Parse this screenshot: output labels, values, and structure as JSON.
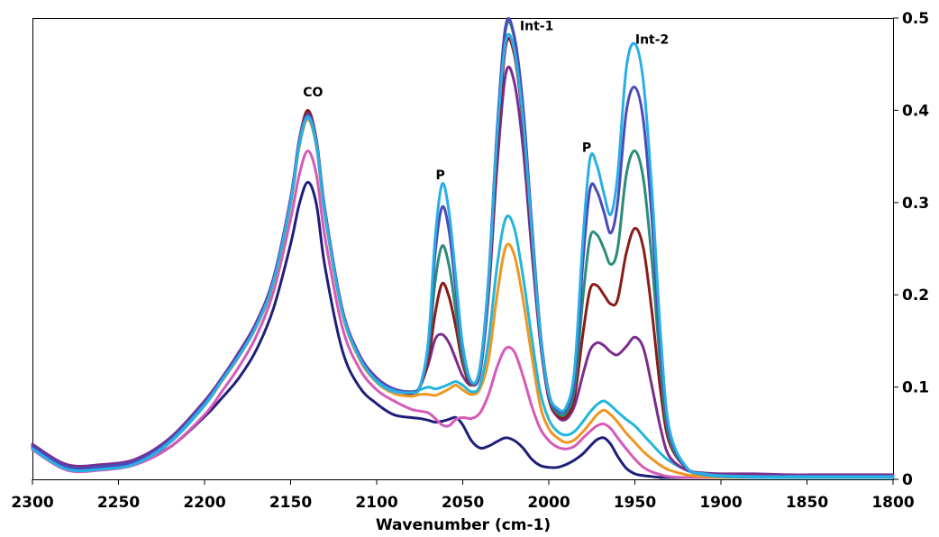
{
  "chart_data": {
    "type": "line",
    "title": "",
    "xlabel": "Wavenumber (cm-1)",
    "ylabel": "",
    "xlim": [
      2300,
      1800
    ],
    "x_reversed": true,
    "ylim": [
      0,
      0.5
    ],
    "y_axis_position": "right",
    "grid": false,
    "legend": "none",
    "x_ticks": [
      "2300",
      "2250",
      "2200",
      "2150",
      "2100",
      "2050",
      "2000",
      "1950",
      "1900",
      "1850",
      "1800"
    ],
    "x_tick_values": [
      2300,
      2250,
      2200,
      2150,
      2100,
      2050,
      2000,
      1950,
      1900,
      1850,
      1800
    ],
    "y_ticks": [
      "0",
      "0.1",
      "0.2",
      "0.3",
      "0.4",
      "0.5"
    ],
    "y_tick_values": [
      0,
      0.1,
      0.2,
      0.3,
      0.4,
      0.5
    ],
    "peak_labels": [
      {
        "text": "CO",
        "x": 2137,
        "y": 0.415
      },
      {
        "text": "P",
        "x": 2063,
        "y": 0.325
      },
      {
        "text": "Int-1",
        "x": 2007,
        "y": 0.487
      },
      {
        "text": "P",
        "x": 1978,
        "y": 0.355
      },
      {
        "text": "Int-2",
        "x": 1940,
        "y": 0.472
      }
    ],
    "x": [
      2300,
      2280,
      2260,
      2240,
      2220,
      2200,
      2190,
      2180,
      2170,
      2160,
      2150,
      2145,
      2140,
      2135,
      2130,
      2120,
      2110,
      2100,
      2090,
      2080,
      2075,
      2070,
      2066,
      2062,
      2058,
      2054,
      2050,
      2045,
      2040,
      2035,
      2030,
      2025,
      2020,
      2015,
      2010,
      2005,
      2000,
      1995,
      1990,
      1985,
      1980,
      1976,
      1972,
      1968,
      1964,
      1960,
      1955,
      1950,
      1945,
      1940,
      1935,
      1930,
      1920,
      1910,
      1900,
      1880,
      1860,
      1840,
      1820,
      1800
    ],
    "series": [
      {
        "color": "#1f1f7a",
        "values": [
          0.035,
          0.012,
          0.012,
          0.018,
          0.035,
          0.068,
          0.088,
          0.11,
          0.14,
          0.185,
          0.255,
          0.298,
          0.322,
          0.298,
          0.23,
          0.14,
          0.1,
          0.082,
          0.07,
          0.067,
          0.066,
          0.064,
          0.062,
          0.063,
          0.065,
          0.067,
          0.059,
          0.042,
          0.034,
          0.036,
          0.041,
          0.045,
          0.042,
          0.034,
          0.022,
          0.015,
          0.013,
          0.013,
          0.016,
          0.021,
          0.028,
          0.036,
          0.043,
          0.045,
          0.038,
          0.025,
          0.012,
          0.006,
          0.004,
          0.003,
          0.002,
          0.002,
          0.002,
          0.002,
          0.002,
          0.002,
          0.002,
          0.002,
          0.002,
          0.002
        ]
      },
      {
        "color": "#d65ab8",
        "values": [
          0.032,
          0.01,
          0.01,
          0.016,
          0.035,
          0.07,
          0.095,
          0.122,
          0.155,
          0.203,
          0.282,
          0.33,
          0.356,
          0.33,
          0.262,
          0.165,
          0.12,
          0.097,
          0.085,
          0.076,
          0.074,
          0.072,
          0.066,
          0.059,
          0.058,
          0.065,
          0.067,
          0.066,
          0.072,
          0.092,
          0.122,
          0.142,
          0.138,
          0.112,
          0.08,
          0.055,
          0.042,
          0.035,
          0.033,
          0.036,
          0.045,
          0.052,
          0.058,
          0.06,
          0.055,
          0.045,
          0.033,
          0.022,
          0.013,
          0.008,
          0.005,
          0.003,
          0.002,
          0.002,
          0.002,
          0.002,
          0.002,
          0.002,
          0.002,
          0.002
        ]
      },
      {
        "color": "#f09620",
        "values": [
          0.033,
          0.011,
          0.011,
          0.017,
          0.04,
          0.08,
          0.106,
          0.133,
          0.165,
          0.212,
          0.298,
          0.36,
          0.39,
          0.36,
          0.285,
          0.18,
          0.13,
          0.105,
          0.093,
          0.09,
          0.092,
          0.092,
          0.091,
          0.094,
          0.098,
          0.102,
          0.097,
          0.092,
          0.098,
          0.13,
          0.2,
          0.252,
          0.243,
          0.195,
          0.135,
          0.08,
          0.055,
          0.045,
          0.04,
          0.043,
          0.052,
          0.061,
          0.07,
          0.075,
          0.07,
          0.062,
          0.05,
          0.04,
          0.03,
          0.022,
          0.015,
          0.01,
          0.005,
          0.003,
          0.002,
          0.002,
          0.002,
          0.002,
          0.002,
          0.002
        ]
      },
      {
        "color": "#22b6dc",
        "values": [
          0.033,
          0.011,
          0.011,
          0.017,
          0.04,
          0.08,
          0.108,
          0.134,
          0.166,
          0.214,
          0.3,
          0.362,
          0.392,
          0.362,
          0.287,
          0.182,
          0.132,
          0.106,
          0.095,
          0.095,
          0.097,
          0.1,
          0.098,
          0.1,
          0.103,
          0.106,
          0.102,
          0.095,
          0.102,
          0.15,
          0.232,
          0.283,
          0.272,
          0.22,
          0.155,
          0.095,
          0.065,
          0.052,
          0.048,
          0.052,
          0.063,
          0.073,
          0.081,
          0.085,
          0.08,
          0.073,
          0.065,
          0.058,
          0.048,
          0.038,
          0.028,
          0.02,
          0.01,
          0.005,
          0.003,
          0.002,
          0.002,
          0.002,
          0.002,
          0.002
        ]
      },
      {
        "color": "#7b2d8e",
        "values": [
          0.038,
          0.016,
          0.016,
          0.022,
          0.045,
          0.085,
          0.11,
          0.138,
          0.17,
          0.218,
          0.305,
          0.368,
          0.397,
          0.368,
          0.292,
          0.185,
          0.135,
          0.11,
          0.098,
          0.093,
          0.1,
          0.125,
          0.152,
          0.157,
          0.148,
          0.13,
          0.112,
          0.102,
          0.115,
          0.2,
          0.34,
          0.44,
          0.43,
          0.36,
          0.25,
          0.15,
          0.087,
          0.068,
          0.065,
          0.08,
          0.115,
          0.14,
          0.148,
          0.145,
          0.138,
          0.135,
          0.144,
          0.154,
          0.142,
          0.1,
          0.055,
          0.025,
          0.01,
          0.007,
          0.006,
          0.006,
          0.005,
          0.005,
          0.005,
          0.005
        ]
      },
      {
        "color": "#8b1a1a",
        "values": [
          0.034,
          0.012,
          0.012,
          0.018,
          0.042,
          0.083,
          0.108,
          0.136,
          0.168,
          0.216,
          0.303,
          0.367,
          0.4,
          0.367,
          0.29,
          0.183,
          0.133,
          0.108,
          0.097,
          0.093,
          0.1,
          0.13,
          0.18,
          0.212,
          0.198,
          0.165,
          0.125,
          0.103,
          0.12,
          0.21,
          0.36,
          0.47,
          0.46,
          0.385,
          0.265,
          0.155,
          0.09,
          0.07,
          0.068,
          0.09,
          0.16,
          0.206,
          0.21,
          0.2,
          0.19,
          0.195,
          0.245,
          0.272,
          0.25,
          0.18,
          0.095,
          0.04,
          0.012,
          0.006,
          0.004,
          0.003,
          0.003,
          0.003,
          0.003,
          0.003
        ]
      },
      {
        "color": "#2a8c7a",
        "values": [
          0.034,
          0.012,
          0.012,
          0.018,
          0.042,
          0.082,
          0.108,
          0.135,
          0.167,
          0.215,
          0.302,
          0.365,
          0.395,
          0.365,
          0.289,
          0.182,
          0.133,
          0.108,
          0.097,
          0.094,
          0.1,
          0.14,
          0.215,
          0.253,
          0.232,
          0.182,
          0.132,
          0.104,
          0.12,
          0.215,
          0.375,
          0.488,
          0.478,
          0.4,
          0.278,
          0.16,
          0.092,
          0.072,
          0.072,
          0.1,
          0.2,
          0.262,
          0.265,
          0.25,
          0.233,
          0.25,
          0.33,
          0.356,
          0.325,
          0.235,
          0.12,
          0.045,
          0.012,
          0.006,
          0.004,
          0.003,
          0.003,
          0.003,
          0.003,
          0.003
        ]
      },
      {
        "color": "#4a4ab8",
        "values": [
          0.036,
          0.014,
          0.014,
          0.02,
          0.043,
          0.083,
          0.109,
          0.136,
          0.168,
          0.216,
          0.303,
          0.366,
          0.396,
          0.366,
          0.29,
          0.183,
          0.134,
          0.109,
          0.098,
          0.095,
          0.1,
          0.145,
          0.245,
          0.295,
          0.27,
          0.205,
          0.14,
          0.105,
          0.121,
          0.218,
          0.38,
          0.492,
          0.48,
          0.405,
          0.28,
          0.162,
          0.094,
          0.075,
          0.076,
          0.11,
          0.24,
          0.315,
          0.312,
          0.29,
          0.267,
          0.3,
          0.398,
          0.425,
          0.388,
          0.28,
          0.14,
          0.05,
          0.012,
          0.006,
          0.004,
          0.003,
          0.003,
          0.003,
          0.003,
          0.003
        ]
      },
      {
        "color": "#29aee6",
        "values": [
          0.033,
          0.011,
          0.011,
          0.017,
          0.041,
          0.081,
          0.107,
          0.134,
          0.166,
          0.214,
          0.301,
          0.364,
          0.393,
          0.364,
          0.288,
          0.182,
          0.132,
          0.107,
          0.096,
          0.094,
          0.1,
          0.15,
          0.262,
          0.32,
          0.29,
          0.218,
          0.145,
          0.106,
          0.121,
          0.215,
          0.372,
          0.475,
          0.465,
          0.39,
          0.272,
          0.158,
          0.093,
          0.077,
          0.078,
          0.12,
          0.265,
          0.348,
          0.34,
          0.31,
          0.287,
          0.33,
          0.445,
          0.472,
          0.43,
          0.31,
          0.155,
          0.055,
          0.013,
          0.006,
          0.004,
          0.003,
          0.003,
          0.003,
          0.003,
          0.003
        ]
      }
    ]
  }
}
